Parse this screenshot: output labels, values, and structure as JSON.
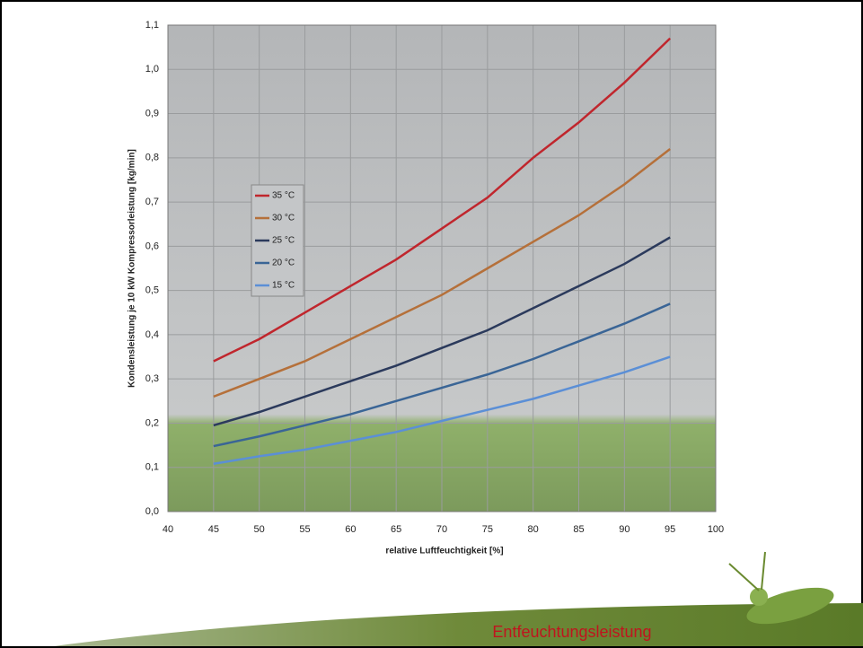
{
  "slide_title": "Entfeuchtungsleistung",
  "chart_data": {
    "type": "line",
    "x_label": "relative Luftfeuchtigkeit [%]",
    "y_label": "Kondensleistung je 10 kW Kompressorleistung [kg/min]",
    "x": [
      45,
      50,
      55,
      60,
      65,
      70,
      75,
      80,
      85,
      90,
      95
    ],
    "series": [
      {
        "name": "35 °C",
        "color": "#c0262d",
        "values": [
          0.34,
          0.39,
          0.45,
          0.51,
          0.57,
          0.64,
          0.71,
          0.8,
          0.88,
          0.97,
          1.07
        ]
      },
      {
        "name": "30 °C",
        "color": "#b5703a",
        "values": [
          0.26,
          0.3,
          0.34,
          0.39,
          0.44,
          0.49,
          0.55,
          0.61,
          0.67,
          0.74,
          0.82
        ]
      },
      {
        "name": "25 °C",
        "color": "#2b3a5c",
        "values": [
          0.195,
          0.225,
          0.26,
          0.295,
          0.33,
          0.37,
          0.41,
          0.46,
          0.51,
          0.56,
          0.62
        ]
      },
      {
        "name": "20 °C",
        "color": "#3a6596",
        "values": [
          0.148,
          0.17,
          0.195,
          0.22,
          0.25,
          0.28,
          0.31,
          0.345,
          0.385,
          0.425,
          0.47
        ]
      },
      {
        "name": "15 °C",
        "color": "#5b8fd6",
        "values": [
          0.108,
          0.125,
          0.14,
          0.16,
          0.18,
          0.205,
          0.23,
          0.255,
          0.285,
          0.315,
          0.35
        ]
      }
    ],
    "xlim": [
      40,
      100
    ],
    "xticks": [
      40,
      45,
      50,
      55,
      60,
      65,
      70,
      75,
      80,
      85,
      90,
      95,
      100
    ],
    "ylim": [
      0,
      1.1
    ],
    "yticks": [
      {
        "value": 0,
        "label": "0,0"
      },
      {
        "value": 0.1,
        "label": "0,1"
      },
      {
        "value": 0.2,
        "label": "0,2"
      },
      {
        "value": 0.3,
        "label": "0,3"
      },
      {
        "value": 0.4,
        "label": "0,4"
      },
      {
        "value": 0.5,
        "label": "0,5"
      },
      {
        "value": 0.6,
        "label": "0,6"
      },
      {
        "value": 0.7,
        "label": "0,7"
      },
      {
        "value": 0.8,
        "label": "0,8"
      },
      {
        "value": 0.9,
        "label": "0,9"
      },
      {
        "value": 1,
        "label": "1,0"
      },
      {
        "value": 1.1,
        "label": "1,1"
      }
    ],
    "grid": true
  }
}
